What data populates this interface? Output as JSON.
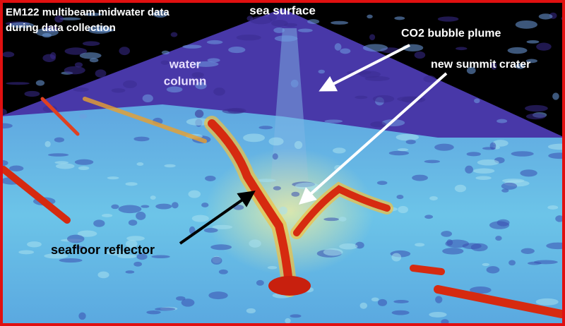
{
  "caption": [
    "EM122 multibeam midwater data",
    "during data collection"
  ],
  "labels": {
    "sea_surface": "sea surface",
    "plume": "CO2 bubble plume",
    "crater": "new summit crater",
    "water_column": [
      "water",
      "column"
    ],
    "seafloor": "seafloor reflector"
  }
}
